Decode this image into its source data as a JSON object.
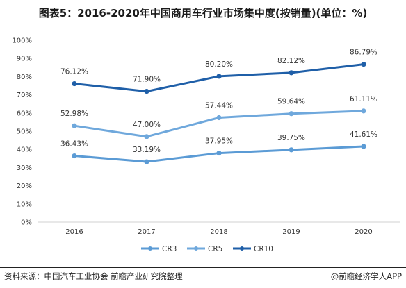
{
  "title": "图表5：2016-2020年中国商用车行业市场集中度(按销量)(单位：%)",
  "footer": {
    "source": "资料来源：中国汽车工业协会 前瞻产业研究院整理",
    "credit": "@前瞻经济学人APP"
  },
  "chart_data": {
    "type": "line",
    "categories": [
      "2016",
      "2017",
      "2018",
      "2019",
      "2020"
    ],
    "series": [
      {
        "name": "CR3",
        "values": [
          36.43,
          33.19,
          37.95,
          39.75,
          41.61
        ],
        "labels": [
          "36.43%",
          "33.19%",
          "37.95%",
          "39.75%",
          "41.61%"
        ],
        "color": "#5b9bd5"
      },
      {
        "name": "CR5",
        "values": [
          52.98,
          47.0,
          57.44,
          59.64,
          61.11
        ],
        "labels": [
          "52.98%",
          "47.00%",
          "57.44%",
          "59.64%",
          "61.11%"
        ],
        "color": "#6fa8dc"
      },
      {
        "name": "CR10",
        "values": [
          76.12,
          71.9,
          80.2,
          82.12,
          86.79
        ],
        "labels": [
          "76.12%",
          "71.90%",
          "80.20%",
          "82.12%",
          "86.79%"
        ],
        "color": "#1f5fa8"
      }
    ],
    "y_ticks": [
      "0%",
      "10%",
      "20%",
      "30%",
      "40%",
      "50%",
      "60%",
      "70%",
      "80%",
      "90%",
      "100%"
    ],
    "ylim": [
      0,
      100
    ],
    "grid": false,
    "legend_position": "bottom"
  }
}
